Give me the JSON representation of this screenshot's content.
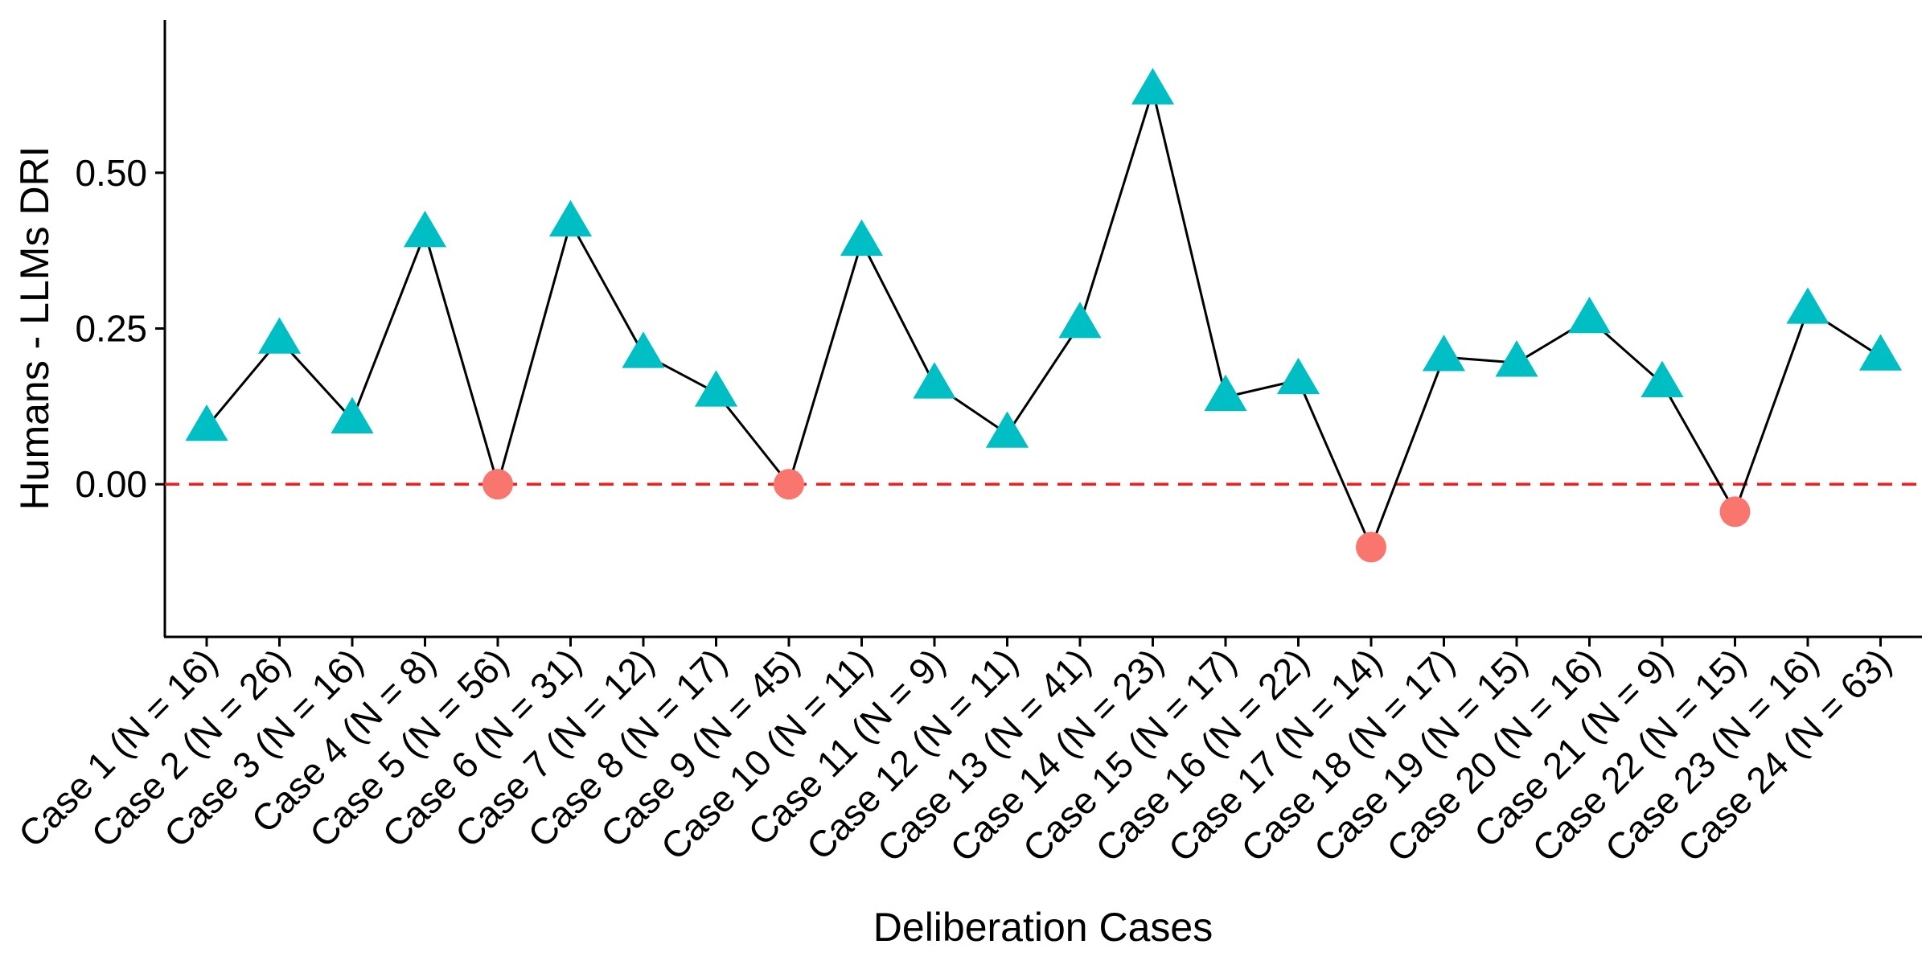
{
  "chart_data": {
    "type": "line",
    "xlabel": "Deliberation Cases",
    "ylabel": "Humans - LLMs DRI",
    "ylim": [
      -0.245,
      0.745
    ],
    "yticks": [
      0,
      0.25,
      0.5
    ],
    "ytick_labels": [
      "0.00",
      "0.25",
      "0.50"
    ],
    "reference_line": {
      "y": 0,
      "style": "dashed",
      "color": "#ee1c1c"
    },
    "grid": false,
    "legend": "none",
    "colors": {
      "line": "#000000",
      "positive_marker": "#00bfc4",
      "nonpositive_marker": "#f8766d"
    },
    "marker_rule": "triangle (teal) for positive difference, circle (salmon) otherwise",
    "categories": [
      "Case 1 (N = 16)",
      "Case 2 (N = 26)",
      "Case 3 (N = 16)",
      "Case 4 (N = 8)",
      "Case 5 (N = 56)",
      "Case 6 (N = 31)",
      "Case 7 (N = 12)",
      "Case 8 (N = 17)",
      "Case 9 (N = 45)",
      "Case 10 (N = 11)",
      "Case 11 (N = 9)",
      "Case 12 (N = 11)",
      "Case 13 (N = 41)",
      "Case 14 (N = 23)",
      "Case 15 (N = 17)",
      "Case 16 (N = 22)",
      "Case 17 (N = 14)",
      "Case 18 (N = 17)",
      "Case 19 (N = 15)",
      "Case 20 (N = 16)",
      "Case 21 (N = 9)",
      "Case 22 (N = 15)",
      "Case 23 (N = 16)",
      "Case 24 (N = 63)"
    ],
    "values": [
      0.092,
      0.232,
      0.104,
      0.403,
      0.0,
      0.42,
      0.209,
      0.147,
      0.0,
      0.389,
      0.16,
      0.081,
      0.257,
      0.632,
      0.14,
      0.167,
      -0.101,
      0.204,
      0.195,
      0.265,
      0.162,
      -0.044,
      0.28,
      0.205
    ]
  }
}
